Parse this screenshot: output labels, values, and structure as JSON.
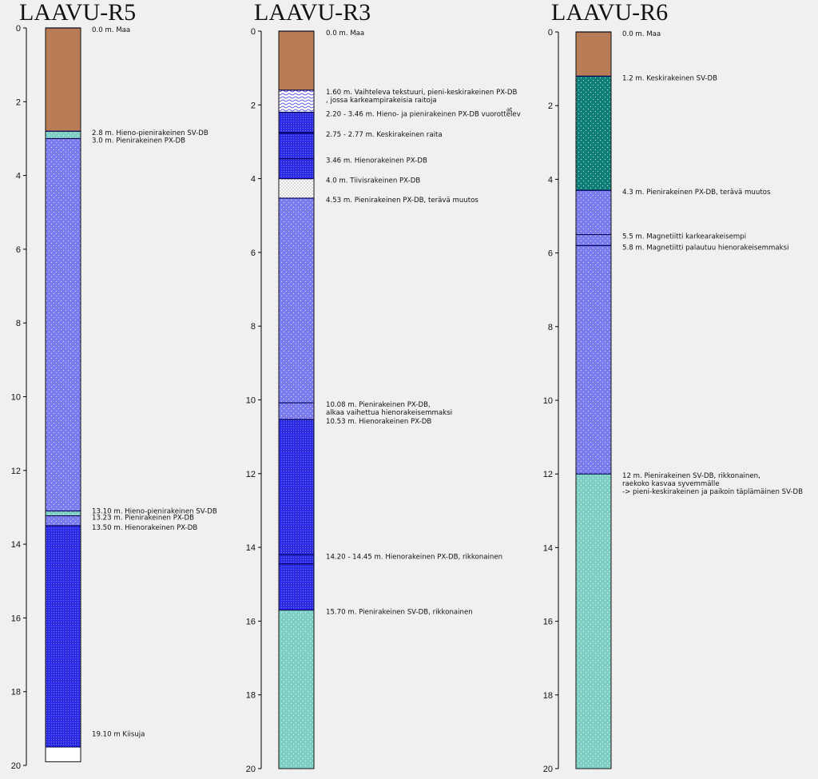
{
  "colors": {
    "soil": "#b87c57",
    "px_medium": "#7b7bf0",
    "px_fine": "#2b2be6",
    "sv_medium": "#0e7f77",
    "sv_fine": "#7ecfc3",
    "blank": "#ffffff",
    "background": "#f0f0f0"
  },
  "logs": [
    {
      "title": "LAAVU-R5",
      "axis_ticks": [
        "0",
        "2",
        "4",
        "6",
        "8",
        "10",
        "12",
        "14",
        "16",
        "18",
        "20"
      ],
      "layers": [
        {
          "from": 0.0,
          "to": 2.8,
          "kind": "soil"
        },
        {
          "from": 2.8,
          "to": 3.0,
          "kind": "sv_fine"
        },
        {
          "from": 3.0,
          "to": 13.1,
          "kind": "px_medium"
        },
        {
          "from": 13.1,
          "to": 13.23,
          "kind": "sv_fine"
        },
        {
          "from": 13.23,
          "to": 13.5,
          "kind": "px_medium"
        },
        {
          "from": 13.5,
          "to": 19.5,
          "kind": "px_fine"
        },
        {
          "from": 19.5,
          "to": 19.9,
          "kind": "blank"
        }
      ],
      "annotations": [
        {
          "depth": 0.0,
          "lines": [
            "0.0 m. Maa"
          ]
        },
        {
          "depth": 2.8,
          "lines": [
            "2.8 m.  Hieno-pienirakeinen SV-DB"
          ]
        },
        {
          "depth": 3.0,
          "lines": [
            "3.0 m.  Pienirakeinen PX-DB"
          ]
        },
        {
          "depth": 13.1,
          "lines": [
            "13.10 m.  Hieno-pienirakeinen SV-DB"
          ]
        },
        {
          "depth": 13.23,
          "lines": [
            "13.23 m.  Pienirakeinen PX-DB"
          ]
        },
        {
          "depth": 13.5,
          "lines": [
            "13.50 m.  Hienorakeinen PX-DB"
          ]
        },
        {
          "depth": 19.1,
          "lines": [
            "19.10 m Kiisuja"
          ]
        }
      ]
    },
    {
      "title": "LAAVU-R3",
      "axis_ticks": [
        "0",
        "2",
        "4",
        "6",
        "8",
        "10",
        "12",
        "14",
        "16",
        "18",
        "20"
      ],
      "layers": [
        {
          "from": 0.0,
          "to": 1.6,
          "kind": "soil"
        },
        {
          "from": 1.6,
          "to": 2.2,
          "kind": "wavy"
        },
        {
          "from": 2.2,
          "to": 2.75,
          "kind": "px_fine"
        },
        {
          "from": 2.75,
          "to": 2.77,
          "kind": "px_fine"
        },
        {
          "from": 2.77,
          "to": 3.46,
          "kind": "px_fine"
        },
        {
          "from": 3.46,
          "to": 4.0,
          "kind": "px_fine"
        },
        {
          "from": 4.0,
          "to": 4.53,
          "kind": "dense"
        },
        {
          "from": 4.53,
          "to": 10.08,
          "kind": "px_medium"
        },
        {
          "from": 10.08,
          "to": 10.53,
          "kind": "px_medium"
        },
        {
          "from": 10.53,
          "to": 14.2,
          "kind": "px_fine"
        },
        {
          "from": 14.2,
          "to": 14.45,
          "kind": "px_fine"
        },
        {
          "from": 14.45,
          "to": 15.7,
          "kind": "px_fine"
        },
        {
          "from": 15.7,
          "to": 20.0,
          "kind": "sv_fine"
        }
      ],
      "annotations": [
        {
          "depth": 0.0,
          "lines": [
            "0.0 m.  Maa"
          ]
        },
        {
          "depth": 1.6,
          "lines": [
            "1.60 m.  Vaihteleva tekstuuri, pieni-keskirakeinen PX-DB",
            "            , jossa karkeampirakeisia raitoja"
          ]
        },
        {
          "depth": 2.2,
          "lines": [
            "2.20 - 3.46 m.  Hieno- ja pienirakeinen PX-DB vuorottelev"
          ],
          "sup": "at"
        },
        {
          "depth": 2.75,
          "lines": [
            "2.75 - 2.77 m.  Keskirakeinen raita"
          ]
        },
        {
          "depth": 3.46,
          "lines": [
            "3.46 m.  Hienorakeinen PX-DB"
          ]
        },
        {
          "depth": 4.0,
          "lines": [
            "4.0 m.  Tiivisrakeinen PX-DB"
          ]
        },
        {
          "depth": 4.53,
          "lines": [
            "4.53 m.  Pienirakeinen PX-DB, terävä muutos"
          ]
        },
        {
          "depth": 10.08,
          "lines": [
            "10.08 m.  Pienirakeinen PX-DB,",
            "               alkaa vaihettua hienorakeisemmaksi"
          ]
        },
        {
          "depth": 10.53,
          "lines": [
            "10.53 m.  Hienorakeinen PX-DB"
          ]
        },
        {
          "depth": 14.2,
          "lines": [
            "14.20 - 14.45 m.  Hienorakeinen PX-DB, rikkonainen"
          ]
        },
        {
          "depth": 15.7,
          "lines": [
            "15.70 m.  Pienirakeinen SV-DB, rikkonainen"
          ]
        }
      ]
    },
    {
      "title": "LAAVU-R6",
      "axis_ticks": [
        "0",
        "2",
        "4",
        "6",
        "8",
        "10",
        "12",
        "14",
        "16",
        "18",
        "20"
      ],
      "layers": [
        {
          "from": 0.0,
          "to": 1.2,
          "kind": "soil"
        },
        {
          "from": 1.2,
          "to": 4.3,
          "kind": "sv_medium"
        },
        {
          "from": 4.3,
          "to": 5.5,
          "kind": "px_medium"
        },
        {
          "from": 5.5,
          "to": 5.8,
          "kind": "px_medium"
        },
        {
          "from": 5.8,
          "to": 12.0,
          "kind": "px_medium"
        },
        {
          "from": 12.0,
          "to": 20.0,
          "kind": "sv_fine"
        }
      ],
      "annotations": [
        {
          "depth": 0.0,
          "lines": [
            "0.0 m.  Maa"
          ]
        },
        {
          "depth": 1.2,
          "lines": [
            "1.2 m.  Keskirakeinen SV-DB"
          ]
        },
        {
          "depth": 4.3,
          "lines": [
            "4.3 m.  Pienirakeinen PX-DB, terävä muutos"
          ]
        },
        {
          "depth": 5.5,
          "lines": [
            "5.5 m.  Magnetiitti karkearakeisempi"
          ]
        },
        {
          "depth": 5.8,
          "lines": [
            "5.8 m.  Magnetiitti palautuu hienorakeisemmaksi"
          ]
        },
        {
          "depth": 12.0,
          "lines": [
            "12 m.  Pienirakeinen SV-DB, rikkonainen,",
            "            raekoko kasvaa syvemmälle",
            "            -> pieni-keskirakeinen ja paikoin täplämäinen SV-DB"
          ]
        }
      ]
    }
  ]
}
